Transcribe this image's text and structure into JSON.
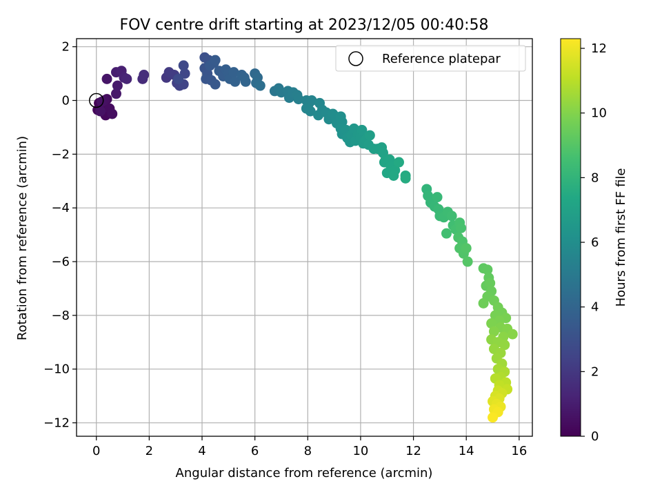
{
  "chart_data": {
    "type": "scatter",
    "title": "FOV centre drift starting at 2023/12/05 00:40:58",
    "xlabel": "Angular distance from reference (arcmin)",
    "ylabel": "Rotation from reference (arcmin)",
    "xlim": [
      -0.75,
      16.5
    ],
    "ylim": [
      -12.5,
      2.3
    ],
    "xticks": [
      "0",
      "2",
      "4",
      "6",
      "8",
      "10",
      "12",
      "14",
      "16"
    ],
    "yticks": [
      "2",
      "0",
      "−2",
      "−4",
      "−6",
      "−8",
      "−10",
      "−12"
    ],
    "grid": true,
    "legend": {
      "placement": "top-right",
      "entries": [
        "Reference platepar"
      ]
    },
    "reference_point": {
      "x": 0,
      "y": 0
    },
    "colorbar": {
      "label": "Hours from first FF file",
      "range": [
        0,
        12.3
      ],
      "ticks": [
        "0",
        "2",
        "4",
        "6",
        "8",
        "10",
        "12"
      ],
      "colormap": "viridis"
    },
    "points": [
      {
        "x": 0.1,
        "y": -0.1,
        "t": 0.05
      },
      {
        "x": 0.2,
        "y": -0.3,
        "t": 0.1
      },
      {
        "x": 0.05,
        "y": -0.35,
        "t": 0.15
      },
      {
        "x": 0.3,
        "y": -0.45,
        "t": 0.2
      },
      {
        "x": 0.35,
        "y": -0.55,
        "t": 0.25
      },
      {
        "x": 0.25,
        "y": -0.2,
        "t": 0.3
      },
      {
        "x": 0.4,
        "y": 0.05,
        "t": 0.35
      },
      {
        "x": 0.5,
        "y": -0.3,
        "t": 0.4
      },
      {
        "x": 0.6,
        "y": -0.5,
        "t": 0.45
      },
      {
        "x": 0.3,
        "y": 0.0,
        "t": 0.5
      },
      {
        "x": 0.2,
        "y": -0.05,
        "t": 0.55
      },
      {
        "x": 0.15,
        "y": -0.4,
        "t": 0.6
      },
      {
        "x": 0.4,
        "y": 0.8,
        "t": 0.7
      },
      {
        "x": 0.75,
        "y": 0.25,
        "t": 0.8
      },
      {
        "x": 0.8,
        "y": 0.55,
        "t": 0.9
      },
      {
        "x": 0.75,
        "y": 1.05,
        "t": 1.0
      },
      {
        "x": 0.95,
        "y": 1.1,
        "t": 1.1
      },
      {
        "x": 1.05,
        "y": 0.85,
        "t": 1.2
      },
      {
        "x": 1.15,
        "y": 0.8,
        "t": 1.3
      },
      {
        "x": 1.75,
        "y": 0.8,
        "t": 1.5
      },
      {
        "x": 1.8,
        "y": 0.95,
        "t": 1.6
      },
      {
        "x": 2.65,
        "y": 0.85,
        "t": 2.0
      },
      {
        "x": 2.75,
        "y": 1.05,
        "t": 2.1
      },
      {
        "x": 2.95,
        "y": 0.95,
        "t": 2.2
      },
      {
        "x": 3.05,
        "y": 0.65,
        "t": 2.3
      },
      {
        "x": 3.15,
        "y": 0.55,
        "t": 2.4
      },
      {
        "x": 3.3,
        "y": 0.6,
        "t": 2.5
      },
      {
        "x": 3.35,
        "y": 1.0,
        "t": 2.6
      },
      {
        "x": 3.3,
        "y": 1.3,
        "t": 2.7
      },
      {
        "x": 3.1,
        "y": 0.8,
        "t": 2.8
      },
      {
        "x": 4.1,
        "y": 1.6,
        "t": 3.0
      },
      {
        "x": 4.25,
        "y": 1.5,
        "t": 3.1
      },
      {
        "x": 4.1,
        "y": 1.2,
        "t": 3.15
      },
      {
        "x": 4.2,
        "y": 1.0,
        "t": 3.2
      },
      {
        "x": 4.15,
        "y": 0.8,
        "t": 3.25
      },
      {
        "x": 4.35,
        "y": 0.75,
        "t": 3.3
      },
      {
        "x": 4.5,
        "y": 0.6,
        "t": 3.35
      },
      {
        "x": 4.3,
        "y": 1.3,
        "t": 3.4
      },
      {
        "x": 4.45,
        "y": 1.4,
        "t": 3.45
      },
      {
        "x": 4.5,
        "y": 1.5,
        "t": 3.5
      },
      {
        "x": 4.65,
        "y": 1.1,
        "t": 3.55
      },
      {
        "x": 4.8,
        "y": 0.9,
        "t": 3.6
      },
      {
        "x": 4.9,
        "y": 1.15,
        "t": 3.65
      },
      {
        "x": 5.0,
        "y": 1.0,
        "t": 3.7
      },
      {
        "x": 5.05,
        "y": 0.8,
        "t": 3.75
      },
      {
        "x": 5.2,
        "y": 1.05,
        "t": 3.8
      },
      {
        "x": 5.25,
        "y": 0.7,
        "t": 3.85
      },
      {
        "x": 5.5,
        "y": 0.95,
        "t": 3.9
      },
      {
        "x": 5.6,
        "y": 0.85,
        "t": 3.95
      },
      {
        "x": 5.65,
        "y": 0.7,
        "t": 4.0
      },
      {
        "x": 6.0,
        "y": 1.0,
        "t": 4.2
      },
      {
        "x": 6.1,
        "y": 0.85,
        "t": 4.3
      },
      {
        "x": 6.05,
        "y": 0.65,
        "t": 4.4
      },
      {
        "x": 6.2,
        "y": 0.55,
        "t": 4.5
      },
      {
        "x": 6.75,
        "y": 0.35,
        "t": 4.8
      },
      {
        "x": 6.9,
        "y": 0.45,
        "t": 4.9
      },
      {
        "x": 7.0,
        "y": 0.3,
        "t": 5.0
      },
      {
        "x": 7.25,
        "y": 0.35,
        "t": 5.1
      },
      {
        "x": 7.3,
        "y": 0.1,
        "t": 5.15
      },
      {
        "x": 7.45,
        "y": 0.3,
        "t": 5.2
      },
      {
        "x": 7.6,
        "y": 0.2,
        "t": 5.25
      },
      {
        "x": 7.65,
        "y": 0.05,
        "t": 5.3
      },
      {
        "x": 7.95,
        "y": 0.0,
        "t": 5.4
      },
      {
        "x": 8.05,
        "y": -0.1,
        "t": 5.45
      },
      {
        "x": 8.15,
        "y": 0.0,
        "t": 5.5
      },
      {
        "x": 7.95,
        "y": -0.3,
        "t": 5.55
      },
      {
        "x": 8.1,
        "y": -0.4,
        "t": 5.6
      },
      {
        "x": 8.45,
        "y": -0.1,
        "t": 5.65
      },
      {
        "x": 8.55,
        "y": -0.35,
        "t": 5.7
      },
      {
        "x": 8.4,
        "y": -0.55,
        "t": 5.75
      },
      {
        "x": 8.7,
        "y": -0.45,
        "t": 5.8
      },
      {
        "x": 8.8,
        "y": -0.7,
        "t": 5.85
      },
      {
        "x": 8.95,
        "y": -0.5,
        "t": 5.9
      },
      {
        "x": 9.05,
        "y": -0.6,
        "t": 5.95
      },
      {
        "x": 9.1,
        "y": -0.85,
        "t": 6.0
      },
      {
        "x": 9.25,
        "y": -0.6,
        "t": 6.05
      },
      {
        "x": 9.3,
        "y": -0.8,
        "t": 6.1
      },
      {
        "x": 9.25,
        "y": -1.05,
        "t": 6.15
      },
      {
        "x": 9.3,
        "y": -1.25,
        "t": 6.2
      },
      {
        "x": 9.45,
        "y": -1.1,
        "t": 6.25
      },
      {
        "x": 9.5,
        "y": -1.4,
        "t": 6.3
      },
      {
        "x": 9.6,
        "y": -1.55,
        "t": 6.35
      },
      {
        "x": 9.65,
        "y": -1.3,
        "t": 6.4
      },
      {
        "x": 9.75,
        "y": -1.05,
        "t": 6.45
      },
      {
        "x": 9.8,
        "y": -1.5,
        "t": 6.5
      },
      {
        "x": 9.9,
        "y": -1.25,
        "t": 6.55
      },
      {
        "x": 10.0,
        "y": -1.35,
        "t": 6.6
      },
      {
        "x": 10.05,
        "y": -1.1,
        "t": 6.65
      },
      {
        "x": 10.1,
        "y": -1.6,
        "t": 6.7
      },
      {
        "x": 10.2,
        "y": -1.45,
        "t": 6.75
      },
      {
        "x": 10.3,
        "y": -1.65,
        "t": 6.8
      },
      {
        "x": 10.35,
        "y": -1.3,
        "t": 6.85
      },
      {
        "x": 10.5,
        "y": -1.8,
        "t": 6.9
      },
      {
        "x": 10.65,
        "y": -1.8,
        "t": 6.95
      },
      {
        "x": 10.8,
        "y": -1.75,
        "t": 7.0
      },
      {
        "x": 10.85,
        "y": -1.95,
        "t": 7.05
      },
      {
        "x": 10.95,
        "y": -2.2,
        "t": 7.1
      },
      {
        "x": 10.9,
        "y": -2.3,
        "t": 7.15
      },
      {
        "x": 11.1,
        "y": -2.2,
        "t": 7.2
      },
      {
        "x": 11.15,
        "y": -2.45,
        "t": 7.25
      },
      {
        "x": 11.0,
        "y": -2.7,
        "t": 7.3
      },
      {
        "x": 11.3,
        "y": -2.6,
        "t": 7.35
      },
      {
        "x": 11.25,
        "y": -2.8,
        "t": 7.4
      },
      {
        "x": 11.45,
        "y": -2.3,
        "t": 7.45
      },
      {
        "x": 11.7,
        "y": -2.8,
        "t": 7.5
      },
      {
        "x": 11.7,
        "y": -2.9,
        "t": 7.55
      },
      {
        "x": 12.5,
        "y": -3.3,
        "t": 8.0
      },
      {
        "x": 12.55,
        "y": -3.55,
        "t": 8.05
      },
      {
        "x": 12.65,
        "y": -3.8,
        "t": 8.1
      },
      {
        "x": 12.8,
        "y": -3.95,
        "t": 8.15
      },
      {
        "x": 12.9,
        "y": -3.6,
        "t": 8.2
      },
      {
        "x": 12.95,
        "y": -4.05,
        "t": 8.25
      },
      {
        "x": 13.0,
        "y": -4.3,
        "t": 8.3
      },
      {
        "x": 13.15,
        "y": -4.35,
        "t": 8.35
      },
      {
        "x": 13.3,
        "y": -4.15,
        "t": 8.4
      },
      {
        "x": 13.45,
        "y": -4.3,
        "t": 8.45
      },
      {
        "x": 13.5,
        "y": -4.65,
        "t": 8.5
      },
      {
        "x": 13.25,
        "y": -4.95,
        "t": 8.55
      },
      {
        "x": 13.6,
        "y": -4.8,
        "t": 8.6
      },
      {
        "x": 13.75,
        "y": -4.55,
        "t": 8.65
      },
      {
        "x": 13.8,
        "y": -4.75,
        "t": 8.7
      },
      {
        "x": 13.7,
        "y": -5.1,
        "t": 8.75
      },
      {
        "x": 13.85,
        "y": -5.25,
        "t": 8.8
      },
      {
        "x": 13.75,
        "y": -5.5,
        "t": 8.85
      },
      {
        "x": 13.9,
        "y": -5.7,
        "t": 8.9
      },
      {
        "x": 14.0,
        "y": -5.5,
        "t": 8.95
      },
      {
        "x": 14.05,
        "y": -6.0,
        "t": 9.0
      },
      {
        "x": 14.65,
        "y": -6.25,
        "t": 9.2
      },
      {
        "x": 14.8,
        "y": -6.3,
        "t": 9.25
      },
      {
        "x": 14.85,
        "y": -6.6,
        "t": 9.3
      },
      {
        "x": 14.75,
        "y": -6.9,
        "t": 9.35
      },
      {
        "x": 14.9,
        "y": -6.8,
        "t": 9.4
      },
      {
        "x": 14.95,
        "y": -7.1,
        "t": 9.45
      },
      {
        "x": 14.8,
        "y": -7.3,
        "t": 9.5
      },
      {
        "x": 14.65,
        "y": -7.55,
        "t": 9.55
      },
      {
        "x": 15.05,
        "y": -7.45,
        "t": 9.6
      },
      {
        "x": 15.2,
        "y": -7.7,
        "t": 9.65
      },
      {
        "x": 15.35,
        "y": -7.9,
        "t": 9.7
      },
      {
        "x": 15.1,
        "y": -8.0,
        "t": 9.75
      },
      {
        "x": 15.5,
        "y": -8.1,
        "t": 9.8
      },
      {
        "x": 15.25,
        "y": -8.2,
        "t": 9.85
      },
      {
        "x": 14.95,
        "y": -8.3,
        "t": 9.9
      },
      {
        "x": 15.3,
        "y": -8.45,
        "t": 9.95
      },
      {
        "x": 15.55,
        "y": -8.5,
        "t": 10.0
      },
      {
        "x": 15.05,
        "y": -8.6,
        "t": 10.05
      },
      {
        "x": 15.75,
        "y": -8.7,
        "t": 10.1
      },
      {
        "x": 15.4,
        "y": -8.8,
        "t": 10.15
      },
      {
        "x": 14.95,
        "y": -8.9,
        "t": 10.2
      },
      {
        "x": 15.2,
        "y": -9.0,
        "t": 10.25
      },
      {
        "x": 15.45,
        "y": -9.1,
        "t": 10.3
      },
      {
        "x": 15.05,
        "y": -9.25,
        "t": 10.35
      },
      {
        "x": 15.3,
        "y": -9.4,
        "t": 10.4
      },
      {
        "x": 15.15,
        "y": -9.6,
        "t": 10.45
      },
      {
        "x": 15.35,
        "y": -9.8,
        "t": 10.55
      },
      {
        "x": 15.2,
        "y": -10.0,
        "t": 10.65
      },
      {
        "x": 15.45,
        "y": -10.1,
        "t": 10.75
      },
      {
        "x": 15.3,
        "y": -10.3,
        "t": 10.85
      },
      {
        "x": 15.1,
        "y": -10.35,
        "t": 10.95
      },
      {
        "x": 15.5,
        "y": -10.5,
        "t": 11.05
      },
      {
        "x": 15.25,
        "y": -10.6,
        "t": 11.15
      },
      {
        "x": 15.55,
        "y": -10.75,
        "t": 11.25
      },
      {
        "x": 15.2,
        "y": -10.8,
        "t": 11.35
      },
      {
        "x": 15.35,
        "y": -10.9,
        "t": 11.45
      },
      {
        "x": 15.1,
        "y": -11.0,
        "t": 11.55
      },
      {
        "x": 15.25,
        "y": -11.1,
        "t": 11.65
      },
      {
        "x": 15.0,
        "y": -11.2,
        "t": 11.75
      },
      {
        "x": 15.15,
        "y": -11.3,
        "t": 11.85
      },
      {
        "x": 15.3,
        "y": -11.4,
        "t": 11.95
      },
      {
        "x": 15.05,
        "y": -11.5,
        "t": 12.05
      },
      {
        "x": 15.2,
        "y": -11.6,
        "t": 12.15
      },
      {
        "x": 15.0,
        "y": -11.8,
        "t": 12.25
      }
    ]
  }
}
